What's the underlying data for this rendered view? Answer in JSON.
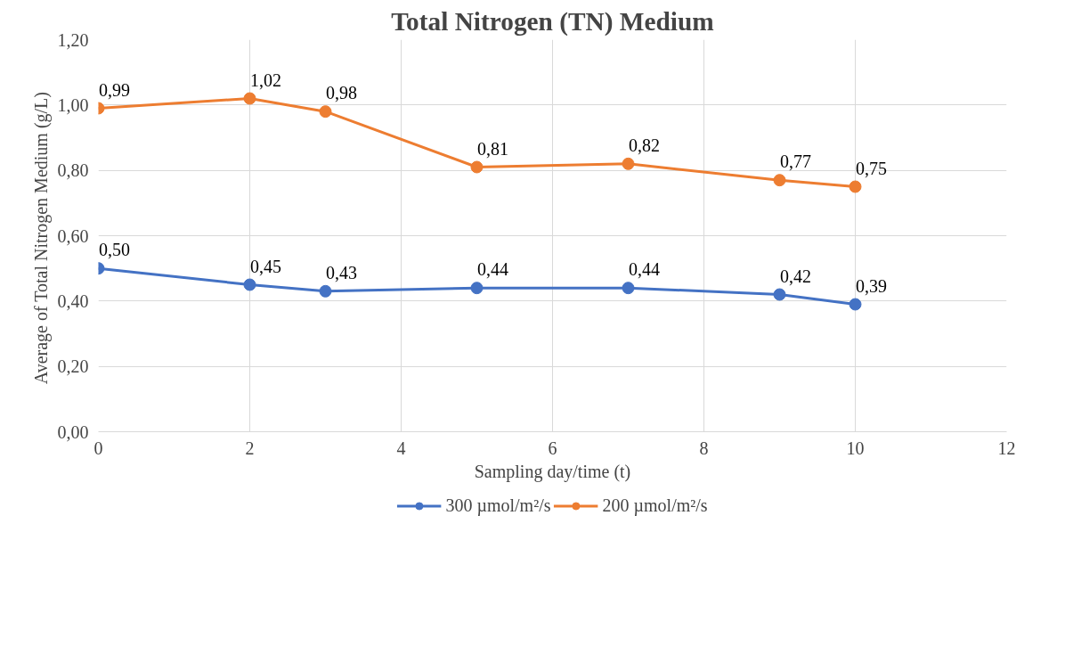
{
  "chart_data": {
    "type": "line",
    "title": "Total Nitrogen (TN) Medium",
    "xlabel": "Sampling day/time (t)",
    "ylabel": "Average of  Total Nitrogen Medium (g/L)",
    "x": [
      0,
      2,
      3,
      5,
      7,
      9,
      10
    ],
    "series": [
      {
        "name": "300 µmol/m²/s",
        "color": "#4472c4",
        "values": [
          0.5,
          0.45,
          0.43,
          0.44,
          0.44,
          0.42,
          0.39
        ],
        "value_labels": [
          "0,50",
          "0,45",
          "0,43",
          "0,44",
          "0,44",
          "0,42",
          "0,39"
        ]
      },
      {
        "name": "200 µmol/m²/s",
        "color": "#ed7d31",
        "values": [
          0.99,
          1.02,
          0.98,
          0.81,
          0.82,
          0.77,
          0.75
        ],
        "value_labels": [
          "0,99",
          "1,02",
          "0,98",
          "0,81",
          "0,82",
          "0,77",
          "0,75"
        ]
      }
    ],
    "xlim": [
      0,
      12
    ],
    "xticks": [
      0,
      2,
      4,
      6,
      8,
      10,
      12
    ],
    "ylim": [
      0,
      1.2
    ],
    "yticks": [
      {
        "value": 0,
        "label": "0,00"
      },
      {
        "value": 0.2,
        "label": "0,20"
      },
      {
        "value": 0.4,
        "label": "0,40"
      },
      {
        "value": 0.6,
        "label": "0,60"
      },
      {
        "value": 0.8,
        "label": "0,80"
      },
      {
        "value": 1.0,
        "label": "1,00"
      },
      {
        "value": 1.2,
        "label": "1,20"
      }
    ],
    "grid": true,
    "legend": "bottom",
    "marker": "circle",
    "line_style": "solid"
  }
}
